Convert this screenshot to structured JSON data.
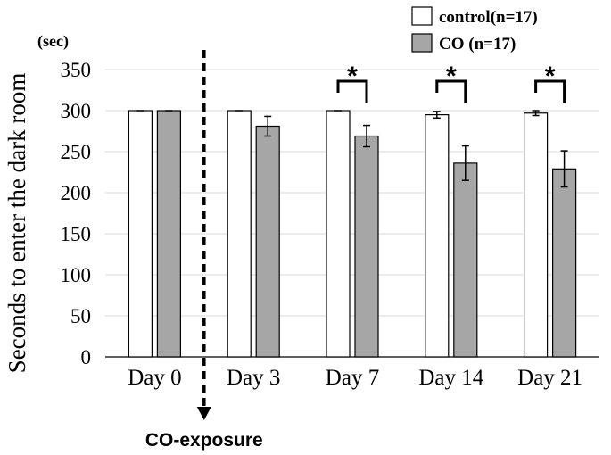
{
  "chart_data": {
    "type": "bar",
    "ylabel": "Seconds to enter the dark room",
    "yunit": "(sec)",
    "ylim": [
      0,
      350
    ],
    "yticks": [
      0,
      50,
      100,
      150,
      200,
      250,
      300,
      350
    ],
    "grid": true,
    "categories": [
      "Day 0",
      "Day 3",
      "Day 7",
      "Day 14",
      "Day 21"
    ],
    "series": [
      {
        "name": "control(n=17)",
        "color": "#ffffff",
        "values": [
          300,
          300,
          300,
          295,
          297
        ],
        "errors": [
          0,
          0,
          0,
          4,
          3
        ]
      },
      {
        "name": "CO (n=17)",
        "color": "#a6a6a6",
        "values": [
          300,
          281,
          269,
          236,
          229
        ],
        "errors": [
          0,
          12,
          13,
          21,
          22
        ]
      }
    ],
    "significance": [
      {
        "category": "Day 7",
        "label": "*"
      },
      {
        "category": "Day 14",
        "label": "*"
      },
      {
        "category": "Day 21",
        "label": "*"
      }
    ],
    "annotation": {
      "text": "CO-exposure",
      "between": [
        "Day 0",
        "Day 3"
      ]
    }
  },
  "colors": {
    "axis": "#000000",
    "grid": "#d9d9d9",
    "co_fill": "#a6a6a6",
    "control_fill": "#ffffff"
  }
}
